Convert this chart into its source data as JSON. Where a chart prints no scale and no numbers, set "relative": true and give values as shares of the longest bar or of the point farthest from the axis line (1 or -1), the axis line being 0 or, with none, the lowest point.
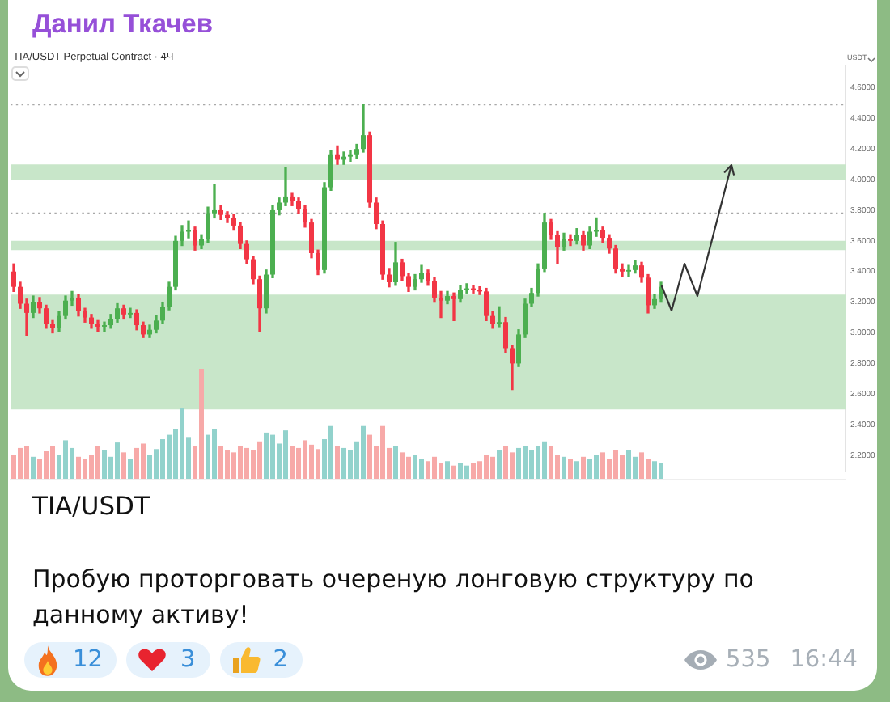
{
  "chart_data": [
    {
      "type": "candlestick",
      "title": "TIA/USDT Perpetual Contract · 4Ч",
      "ylabel": "USDT",
      "annotations": [
        "Данил Ткачев",
        "TIA/USDT",
        "Пробую проторговать очереную лонговую структуру по данному активу!",
        "12",
        "3",
        "2",
        "535",
        "16:44"
      ],
      "categories": [
        null,
        null,
        null,
        null,
        null,
        null,
        null,
        null,
        null,
        null,
        null,
        null,
        null,
        null,
        null,
        null,
        null,
        null,
        null,
        null,
        null,
        null,
        null,
        null,
        null,
        null,
        null,
        null,
        null,
        null,
        null,
        null,
        null,
        null,
        null,
        null,
        null,
        null,
        null,
        null,
        null,
        null,
        null,
        null,
        null,
        null,
        null,
        null,
        null,
        null,
        null,
        null,
        null,
        null,
        null,
        null,
        null,
        null,
        null,
        null,
        null,
        null,
        null,
        null,
        null,
        null,
        null,
        null,
        null,
        null,
        null,
        null,
        null,
        null,
        null,
        null,
        null,
        null,
        null,
        null,
        null,
        null,
        null,
        null,
        null,
        null,
        null,
        null,
        null,
        null,
        null,
        null,
        null,
        null,
        null,
        null,
        null,
        null,
        null,
        null,
        null,
        null,
        null,
        null,
        null,
        null,
        null,
        null,
        null,
        null,
        null,
        null,
        null,
        null,
        null,
        null,
        null,
        null,
        null,
        null,
        null,
        null,
        null,
        null,
        null,
        null,
        null,
        null,
        null
      ],
      "ohlc": [
        [
          3.4,
          3.45,
          3.27,
          3.3
        ],
        [
          3.3,
          3.33,
          3.16,
          3.19
        ],
        [
          3.19,
          3.22,
          2.98,
          3.13
        ],
        [
          3.13,
          3.24,
          3.1,
          3.2
        ],
        [
          3.2,
          3.23,
          3.13,
          3.16
        ],
        [
          3.16,
          3.18,
          3.03,
          3.06
        ],
        [
          3.06,
          3.08,
          3.0,
          3.03
        ],
        [
          3.03,
          3.14,
          3.01,
          3.11
        ],
        [
          3.11,
          3.24,
          3.09,
          3.21
        ],
        [
          3.21,
          3.27,
          3.18,
          3.23
        ],
        [
          3.23,
          3.25,
          3.11,
          3.14
        ],
        [
          3.14,
          3.16,
          3.07,
          3.1
        ],
        [
          3.1,
          3.12,
          3.03,
          3.06
        ],
        [
          3.06,
          3.08,
          3.01,
          3.04
        ],
        [
          3.04,
          3.07,
          3.01,
          3.05
        ],
        [
          3.05,
          3.12,
          3.03,
          3.09
        ],
        [
          3.09,
          3.19,
          3.07,
          3.16
        ],
        [
          3.16,
          3.18,
          3.09,
          3.12
        ],
        [
          3.12,
          3.16,
          3.1,
          3.13
        ],
        [
          3.13,
          3.15,
          3.02,
          3.05
        ],
        [
          3.05,
          3.07,
          2.97,
          2.99
        ],
        [
          2.99,
          3.05,
          2.97,
          3.02
        ],
        [
          3.02,
          3.11,
          3.0,
          3.08
        ],
        [
          3.08,
          3.2,
          3.06,
          3.17
        ],
        [
          3.17,
          3.33,
          3.15,
          3.3
        ],
        [
          3.3,
          3.63,
          3.28,
          3.6
        ],
        [
          3.6,
          3.7,
          3.57,
          3.66
        ],
        [
          3.66,
          3.73,
          3.62,
          3.67
        ],
        [
          3.67,
          3.69,
          3.54,
          3.57
        ],
        [
          3.57,
          3.64,
          3.55,
          3.61
        ],
        [
          3.61,
          3.82,
          3.59,
          3.78
        ],
        [
          3.78,
          3.97,
          3.75,
          3.8
        ],
        [
          3.8,
          3.83,
          3.74,
          3.77
        ],
        [
          3.77,
          3.79,
          3.72,
          3.75
        ],
        [
          3.75,
          3.77,
          3.67,
          3.7
        ],
        [
          3.7,
          3.72,
          3.55,
          3.58
        ],
        [
          3.58,
          3.6,
          3.45,
          3.48
        ],
        [
          3.48,
          3.5,
          3.32,
          3.35
        ],
        [
          3.35,
          3.37,
          3.01,
          3.16
        ],
        [
          3.16,
          3.41,
          3.13,
          3.38
        ],
        [
          3.38,
          3.83,
          3.36,
          3.8
        ],
        [
          3.8,
          3.88,
          3.77,
          3.85
        ],
        [
          3.85,
          4.08,
          3.83,
          3.89
        ],
        [
          3.89,
          3.91,
          3.83,
          3.86
        ],
        [
          3.86,
          3.88,
          3.78,
          3.81
        ],
        [
          3.81,
          3.83,
          3.69,
          3.72
        ],
        [
          3.72,
          3.74,
          3.49,
          3.52
        ],
        [
          3.52,
          3.54,
          3.38,
          3.41
        ],
        [
          3.41,
          3.98,
          3.39,
          3.95
        ],
        [
          3.95,
          4.19,
          3.93,
          4.16
        ],
        [
          4.16,
          4.22,
          4.1,
          4.13
        ],
        [
          4.13,
          4.18,
          4.1,
          4.15
        ],
        [
          4.15,
          4.19,
          4.12,
          4.16
        ],
        [
          4.16,
          4.23,
          4.14,
          4.2
        ],
        [
          4.2,
          4.49,
          4.18,
          4.29
        ],
        [
          4.29,
          4.31,
          3.82,
          3.85
        ],
        [
          3.85,
          3.88,
          3.68,
          3.71
        ],
        [
          3.71,
          3.73,
          3.35,
          3.38
        ],
        [
          3.38,
          3.42,
          3.3,
          3.33
        ],
        [
          3.33,
          3.59,
          3.31,
          3.46
        ],
        [
          3.46,
          3.48,
          3.34,
          3.37
        ],
        [
          3.37,
          3.39,
          3.27,
          3.3
        ],
        [
          3.3,
          3.38,
          3.28,
          3.35
        ],
        [
          3.35,
          3.44,
          3.33,
          3.39
        ],
        [
          3.39,
          3.41,
          3.31,
          3.34
        ],
        [
          3.34,
          3.36,
          3.2,
          3.23
        ],
        [
          3.23,
          3.27,
          3.1,
          3.21
        ],
        [
          3.21,
          3.27,
          3.19,
          3.24
        ],
        [
          3.24,
          3.26,
          3.08,
          3.22
        ],
        [
          3.22,
          3.31,
          3.2,
          3.28
        ],
        [
          3.28,
          3.32,
          3.26,
          3.29
        ],
        [
          3.29,
          3.31,
          3.26,
          3.28
        ],
        [
          3.28,
          3.3,
          3.25,
          3.27
        ],
        [
          3.27,
          3.29,
          3.08,
          3.11
        ],
        [
          3.11,
          3.14,
          3.03,
          3.06
        ],
        [
          3.06,
          3.17,
          3.04,
          3.07
        ],
        [
          3.07,
          3.1,
          2.87,
          2.9
        ],
        [
          2.9,
          2.92,
          2.63,
          2.8
        ],
        [
          2.8,
          3.02,
          2.78,
          2.99
        ],
        [
          2.99,
          3.22,
          2.97,
          3.19
        ],
        [
          3.19,
          3.29,
          3.17,
          3.26
        ],
        [
          3.26,
          3.45,
          3.24,
          3.42
        ],
        [
          3.42,
          3.78,
          3.4,
          3.72
        ],
        [
          3.72,
          3.74,
          3.61,
          3.64
        ],
        [
          3.64,
          3.66,
          3.45,
          3.56
        ],
        [
          3.56,
          3.65,
          3.54,
          3.61
        ],
        [
          3.61,
          3.64,
          3.57,
          3.6
        ],
        [
          3.6,
          3.68,
          3.58,
          3.64
        ],
        [
          3.64,
          3.66,
          3.54,
          3.57
        ],
        [
          3.57,
          3.69,
          3.55,
          3.66
        ],
        [
          3.66,
          3.75,
          3.63,
          3.67
        ],
        [
          3.67,
          3.69,
          3.59,
          3.62
        ],
        [
          3.62,
          3.64,
          3.52,
          3.55
        ],
        [
          3.55,
          3.57,
          3.39,
          3.42
        ],
        [
          3.42,
          3.45,
          3.37,
          3.4
        ],
        [
          3.4,
          3.44,
          3.37,
          3.41
        ],
        [
          3.41,
          3.47,
          3.39,
          3.44
        ],
        [
          3.44,
          3.46,
          3.33,
          3.36
        ],
        [
          3.36,
          3.38,
          3.13,
          3.18
        ],
        [
          3.18,
          3.25,
          3.16,
          3.22
        ],
        [
          3.22,
          3.33,
          3.2,
          3.3
        ],
        null,
        null,
        null,
        null,
        null,
        null,
        null,
        null,
        null,
        null,
        null,
        null,
        null,
        null,
        null,
        null,
        null,
        null,
        null,
        null,
        null,
        null,
        null,
        null,
        null,
        null,
        null,
        null
      ],
      "colors": [
        "#f23645",
        "#f23645",
        "#f23645",
        "#4caf50",
        "#f23645",
        "#f23645",
        "#f23645",
        "#4caf50",
        "#4caf50",
        "#4caf50",
        "#f23645",
        "#f23645",
        "#f23645",
        "#f23645",
        "#4caf50",
        "#4caf50",
        "#4caf50",
        "#f23645",
        "#4caf50",
        "#f23645",
        "#f23645",
        "#4caf50",
        "#4caf50",
        "#4caf50",
        "#4caf50",
        "#4caf50",
        "#4caf50",
        "#4caf50",
        "#f23645",
        "#4caf50",
        "#4caf50",
        "#4caf50",
        "#f23645",
        "#f23645",
        "#f23645",
        "#f23645",
        "#f23645",
        "#f23645",
        "#f23645",
        "#4caf50",
        "#4caf50",
        "#4caf50",
        "#4caf50",
        "#f23645",
        "#f23645",
        "#f23645",
        "#f23645",
        "#f23645",
        "#4caf50",
        "#4caf50",
        "#f23645",
        "#4caf50",
        "#4caf50",
        "#4caf50",
        "#4caf50",
        "#f23645",
        "#f23645",
        "#f23645",
        "#f23645",
        "#4caf50",
        "#f23645",
        "#f23645",
        "#4caf50",
        "#4caf50",
        "#f23645",
        "#f23645",
        "#f23645",
        "#4caf50",
        "#f23645",
        "#4caf50",
        "#4caf50",
        "#f23645",
        "#f23645",
        "#f23645",
        "#f23645",
        "#4caf50",
        "#f23645",
        "#f23645",
        "#4caf50",
        "#4caf50",
        "#4caf50",
        "#4caf50",
        "#4caf50",
        "#f23645",
        "#f23645",
        "#4caf50",
        "#f23645",
        "#4caf50",
        "#f23645",
        "#4caf50",
        "#4caf50",
        "#f23645",
        "#f23645",
        "#f23645",
        "#f23645",
        "#4caf50",
        "#4caf50",
        "#f23645",
        "#f23645",
        "#4caf50",
        "#4caf50",
        null,
        null,
        null,
        null,
        null,
        null,
        null,
        null,
        null,
        null,
        null,
        null,
        null,
        null,
        null,
        null,
        null,
        null,
        null,
        null,
        null,
        null,
        null,
        null,
        null,
        null,
        null,
        null
      ],
      "ylim": [
        2.1,
        4.75
      ],
      "yticks": [
        {
          "value": 2.2,
          "label": "2.2000"
        },
        {
          "value": 2.4,
          "label": "2.4000"
        },
        {
          "value": 2.6,
          "label": "2.6000"
        },
        {
          "value": 2.8,
          "label": "2.8000"
        },
        {
          "value": 3.0,
          "label": "3.0000"
        },
        {
          "value": 3.2,
          "label": "3.2000"
        },
        {
          "value": 3.4,
          "label": "3.4000"
        },
        {
          "value": 3.6,
          "label": "3.6000"
        },
        {
          "value": 3.8,
          "label": "3.8000"
        },
        {
          "value": 4.0,
          "label": "4.0000"
        },
        {
          "value": 4.2,
          "label": "4.2000"
        },
        {
          "value": 4.4,
          "label": "4.4000"
        },
        {
          "value": 4.6,
          "label": "4.6000"
        }
      ],
      "tick_labels": "y",
      "bands": [
        {
          "axis": "y",
          "from": 2.5,
          "to": 3.12,
          "color": "#c8e6c9"
        },
        {
          "axis": "y",
          "from": 3.1,
          "to": 3.25,
          "color": "#c8e6c9"
        },
        {
          "axis": "y",
          "from": 3.54,
          "to": 3.6,
          "color": "#c8e6c9"
        },
        {
          "axis": "y",
          "from": 4.0,
          "to": 4.1,
          "color": "#c8e6c9"
        }
      ],
      "ref_lines": [
        {
          "axis": "y",
          "value": 4.49,
          "color": "#a8a8a8",
          "line_style": "dotted"
        },
        {
          "axis": "y",
          "value": 3.78,
          "color": "#a8a8a8",
          "line_style": "dotted"
        }
      ]
    },
    {
      "type": "bar",
      "relative": true,
      "tick_labels": false,
      "categories": [
        null,
        null,
        null,
        null,
        null,
        null,
        null,
        null,
        null,
        null,
        null,
        null,
        null,
        null,
        null,
        null,
        null,
        null,
        null,
        null,
        null,
        null,
        null,
        null,
        null,
        null,
        null,
        null,
        null,
        null,
        null,
        null,
        null,
        null,
        null,
        null,
        null,
        null,
        null,
        null,
        null,
        null,
        null,
        null,
        null,
        null,
        null,
        null,
        null,
        null,
        null,
        null,
        null,
        null,
        null,
        null,
        null,
        null,
        null,
        null,
        null,
        null,
        null,
        null,
        null,
        null,
        null,
        null,
        null,
        null,
        null,
        null,
        null,
        null,
        null,
        null,
        null,
        null,
        null,
        null,
        null,
        null,
        null,
        null,
        null,
        null,
        null,
        null,
        null,
        null,
        null,
        null,
        null,
        null,
        null,
        null,
        null,
        null,
        null,
        null,
        null,
        null,
        null,
        null,
        null,
        null,
        null,
        null,
        null,
        null,
        null,
        null,
        null,
        null,
        null,
        null,
        null,
        null,
        null,
        null,
        null,
        null,
        null,
        null,
        null,
        null,
        null,
        null,
        null
      ],
      "values": [
        0.22,
        0.28,
        0.3,
        0.2,
        0.18,
        0.25,
        0.3,
        0.22,
        0.35,
        0.28,
        0.2,
        0.18,
        0.22,
        0.3,
        0.26,
        0.2,
        0.33,
        0.24,
        0.18,
        0.28,
        0.32,
        0.22,
        0.27,
        0.36,
        0.4,
        0.45,
        0.64,
        0.38,
        0.3,
        1,
        0.4,
        0.45,
        0.3,
        0.26,
        0.24,
        0.3,
        0.28,
        0.26,
        0.34,
        0.42,
        0.4,
        0.32,
        0.44,
        0.3,
        0.28,
        0.35,
        0.31,
        0.27,
        0.36,
        0.48,
        0.3,
        0.28,
        0.26,
        0.34,
        0.48,
        0.4,
        0.3,
        0.48,
        0.28,
        0.3,
        0.24,
        0.2,
        0.22,
        0.18,
        0.16,
        0.2,
        0.14,
        0.16,
        0.12,
        0.14,
        0.12,
        0.14,
        0.16,
        0.22,
        0.2,
        0.26,
        0.3,
        0.24,
        0.28,
        0.3,
        0.26,
        0.3,
        0.34,
        0.3,
        0.22,
        0.2,
        0.18,
        0.16,
        0.2,
        0.18,
        0.22,
        0.24,
        0.18,
        0.26,
        0.22,
        0.26,
        0.2,
        0.24,
        0.18,
        0.16,
        0.14,
        null,
        null,
        null,
        null,
        null,
        null,
        null,
        null,
        null,
        null,
        null,
        null,
        null,
        null,
        null,
        null,
        null,
        null,
        null,
        null,
        null,
        null,
        null,
        null,
        null,
        null,
        null,
        null
      ],
      "colors": [
        "#f7a9a8",
        "#f7a9a8",
        "#f7a9a8",
        "#92d2cc",
        "#f7a9a8",
        "#f7a9a8",
        "#f7a9a8",
        "#92d2cc",
        "#92d2cc",
        "#92d2cc",
        "#f7a9a8",
        "#f7a9a8",
        "#f7a9a8",
        "#f7a9a8",
        "#92d2cc",
        "#92d2cc",
        "#92d2cc",
        "#f7a9a8",
        "#92d2cc",
        "#f7a9a8",
        "#f7a9a8",
        "#92d2cc",
        "#92d2cc",
        "#92d2cc",
        "#92d2cc",
        "#92d2cc",
        "#92d2cc",
        "#92d2cc",
        "#f7a9a8",
        "#f7a9a8",
        "#92d2cc",
        "#92d2cc",
        "#f7a9a8",
        "#f7a9a8",
        "#f7a9a8",
        "#f7a9a8",
        "#f7a9a8",
        "#f7a9a8",
        "#f7a9a8",
        "#92d2cc",
        "#92d2cc",
        "#92d2cc",
        "#92d2cc",
        "#f7a9a8",
        "#f7a9a8",
        "#f7a9a8",
        "#f7a9a8",
        "#f7a9a8",
        "#92d2cc",
        "#92d2cc",
        "#f7a9a8",
        "#92d2cc",
        "#92d2cc",
        "#92d2cc",
        "#92d2cc",
        "#f7a9a8",
        "#f7a9a8",
        "#f7a9a8",
        "#f7a9a8",
        "#92d2cc",
        "#f7a9a8",
        "#f7a9a8",
        "#92d2cc",
        "#92d2cc",
        "#f7a9a8",
        "#f7a9a8",
        "#f7a9a8",
        "#92d2cc",
        "#f7a9a8",
        "#92d2cc",
        "#92d2cc",
        "#f7a9a8",
        "#f7a9a8",
        "#f7a9a8",
        "#f7a9a8",
        "#92d2cc",
        "#f7a9a8",
        "#f7a9a8",
        "#92d2cc",
        "#92d2cc",
        "#92d2cc",
        "#92d2cc",
        "#92d2cc",
        "#f7a9a8",
        "#f7a9a8",
        "#92d2cc",
        "#f7a9a8",
        "#92d2cc",
        "#f7a9a8",
        "#92d2cc",
        "#92d2cc",
        "#f7a9a8",
        "#f7a9a8",
        "#f7a9a8",
        "#f7a9a8",
        "#92d2cc",
        "#92d2cc",
        "#f7a9a8",
        "#f7a9a8",
        "#92d2cc",
        "#92d2cc",
        null,
        null,
        null,
        null,
        null,
        null,
        null,
        null,
        null,
        null,
        null,
        null,
        null,
        null,
        null,
        null,
        null,
        null,
        null,
        null,
        null,
        null,
        null,
        null,
        null,
        null,
        null,
        null
      ]
    }
  ]
}
